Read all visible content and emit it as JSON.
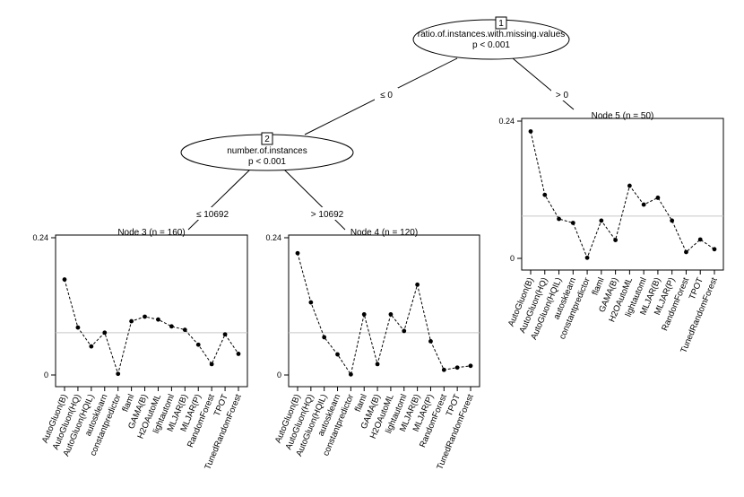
{
  "tree": {
    "root": {
      "id": "1",
      "variable": "ratio.of.instances.with.missing.values",
      "pvalue": "p < 0.001",
      "left_split": "≤ 0",
      "right_split": "> 0"
    },
    "inner": {
      "id": "2",
      "variable": "number.of.instances",
      "pvalue": "p < 0.001",
      "left_split": "≤ 10692",
      "right_split": "> 10692"
    }
  },
  "chart_data": [
    {
      "type": "line",
      "title": "Node 3 (n = 160)",
      "categories": [
        "AutoGluon(B)",
        "AutoGluon(HQ)",
        "AutoGluon(HQIL)",
        "autosklearn",
        "constantpredictor",
        "flaml",
        "GAMA(B)",
        "H2OAutoML",
        "lightautoml",
        "MLJAR(B)",
        "MLJAR(P)",
        "RandomForest",
        "TPOT",
        "TunedRandomForest"
      ],
      "values": [
        0.167,
        0.083,
        0.05,
        0.074,
        0.002,
        0.094,
        0.102,
        0.097,
        0.085,
        0.079,
        0.053,
        0.019,
        0.071,
        0.037
      ],
      "reference": 0.074,
      "ylim": [
        0,
        0.24
      ],
      "yticks": [
        "0.24",
        "0"
      ]
    },
    {
      "type": "line",
      "title": "Node 4 (n = 120)",
      "categories": [
        "AutoGluon(B)",
        "AutoGluon(HQ)",
        "AutoGluon(HQIL)",
        "autosklearn",
        "constantpredictor",
        "flaml",
        "GAMA(B)",
        "H2OAutoML",
        "lightautoml",
        "MLJAR(B)",
        "MLJAR(P)",
        "RandomForest",
        "TPOT",
        "TunedRandomForest"
      ],
      "values": [
        0.213,
        0.127,
        0.066,
        0.036,
        0.001,
        0.106,
        0.019,
        0.106,
        0.077,
        0.158,
        0.059,
        0.009,
        0.013,
        0.016
      ],
      "reference": 0.074,
      "ylim": [
        0,
        0.24
      ],
      "yticks": [
        "0.24",
        "0"
      ]
    },
    {
      "type": "line",
      "title": "Node 5 (n = 50)",
      "categories": [
        "AutoGluon(B)",
        "AutoGluon(HQ)",
        "AutoGluon(HQIL)",
        "autosklearn",
        "constantpredictor",
        "flaml",
        "GAMA(B)",
        "H2OAutoML",
        "lightautoml",
        "MLJAR(B)",
        "MLJAR(P)",
        "RandomForest",
        "TPOT",
        "TunedRandomForest"
      ],
      "values": [
        0.222,
        0.111,
        0.069,
        0.062,
        0.001,
        0.066,
        0.032,
        0.127,
        0.094,
        0.106,
        0.066,
        0.011,
        0.033,
        0.016
      ],
      "reference": 0.074,
      "ylim": [
        0,
        0.24
      ],
      "yticks": [
        "0.24",
        "0"
      ]
    }
  ]
}
